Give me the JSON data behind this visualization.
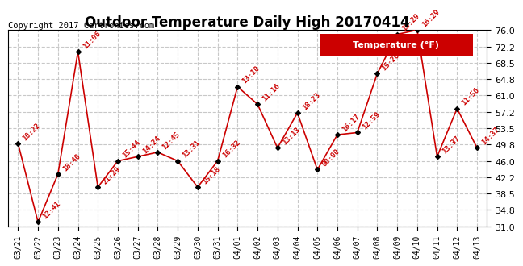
{
  "title": "Outdoor Temperature Daily High 20170414",
  "copyright": "Copyright 2017 Cartronics.com",
  "legend_label": "Temperature (°F)",
  "dates": [
    "03/21",
    "03/22",
    "03/23",
    "03/24",
    "03/25",
    "03/26",
    "03/27",
    "03/28",
    "03/29",
    "03/30",
    "03/31",
    "04/01",
    "04/02",
    "04/03",
    "04/04",
    "04/05",
    "04/06",
    "04/07",
    "04/08",
    "04/09",
    "04/10",
    "04/11",
    "04/12",
    "04/13"
  ],
  "values": [
    50.0,
    32.0,
    43.0,
    71.0,
    40.0,
    46.0,
    47.0,
    48.0,
    46.0,
    40.0,
    46.0,
    63.0,
    59.0,
    49.0,
    57.0,
    44.0,
    52.0,
    52.5,
    66.0,
    75.0,
    76.0,
    47.0,
    58.0,
    49.0
  ],
  "annotations": [
    "10:22",
    "12:41",
    "18:40",
    "11:06",
    "21:29",
    "15:44",
    "14:24",
    "12:45",
    "13:31",
    "15:18",
    "16:32",
    "13:10",
    "11:16",
    "13:13",
    "18:23",
    "00:00",
    "16:17",
    "12:59",
    "15:26",
    "16:29",
    "16:29",
    "13:37",
    "11:56",
    "14:37"
  ],
  "ylim_min": 31.0,
  "ylim_max": 76.0,
  "yticks": [
    31.0,
    34.8,
    38.5,
    42.2,
    46.0,
    49.8,
    53.5,
    57.2,
    61.0,
    64.8,
    68.5,
    72.2,
    76.0
  ],
  "line_color": "#cc0000",
  "marker_color": "#000000",
  "background_color": "#ffffff",
  "grid_color": "#c8c8c8",
  "title_fontsize": 12,
  "annotation_fontsize": 6.5,
  "copyright_fontsize": 7.5,
  "legend_bg": "#cc0000",
  "legend_fg": "#ffffff"
}
